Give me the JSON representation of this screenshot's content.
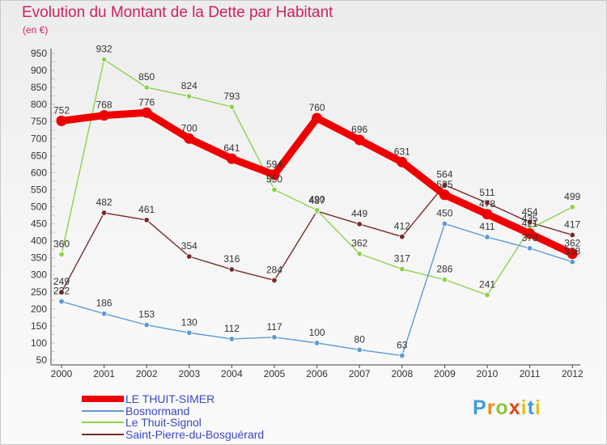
{
  "title": "Evolution du Montant de la Dette par Habitant",
  "unit": "(en €)",
  "logo": "Proxiti",
  "chart_data": {
    "type": "line",
    "title": "Evolution du Montant de la Dette par Habitant",
    "ylabel": "(en €)",
    "ylim": [
      50,
      950
    ],
    "yticks": [
      50,
      100,
      150,
      200,
      250,
      300,
      350,
      400,
      450,
      500,
      550,
      600,
      650,
      700,
      750,
      800,
      850,
      900,
      950
    ],
    "categories": [
      "2000",
      "2001",
      "2002",
      "2003",
      "2004",
      "2005",
      "2006",
      "2007",
      "2008",
      "2009",
      "2010",
      "2011",
      "2012"
    ],
    "grid": false,
    "legend_position": "bottom-left",
    "series": [
      {
        "name": "LE THUIT-SIMER",
        "color": "#ee0000",
        "values": [
          752,
          768,
          776,
          700,
          641,
          594,
          760,
          696,
          631,
          535,
          478,
          421,
          362
        ]
      },
      {
        "name": "Bosnormand",
        "color": "#5b9bd5",
        "values": [
          222,
          186,
          153,
          130,
          112,
          117,
          100,
          80,
          63,
          450,
          411,
          378,
          338
        ]
      },
      {
        "name": "Le Thuit-Signol",
        "color": "#8fd14f",
        "values": [
          360,
          932,
          850,
          824,
          793,
          550,
          490,
          362,
          317,
          286,
          241,
          435,
          499
        ]
      },
      {
        "name": "Saint-Pierre-du-Bosguérard",
        "color": "#7a2a2a",
        "values": [
          249,
          482,
          461,
          354,
          316,
          284,
          487,
          449,
          412,
          564,
          511,
          454,
          417
        ]
      }
    ]
  }
}
